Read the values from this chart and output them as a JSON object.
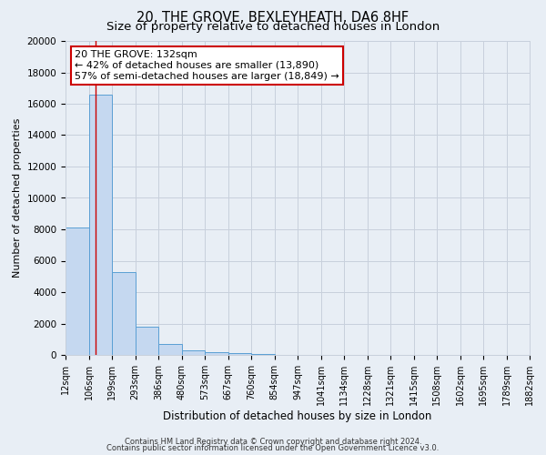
{
  "title": "20, THE GROVE, BEXLEYHEATH, DA6 8HF",
  "subtitle": "Size of property relative to detached houses in London",
  "xlabel": "Distribution of detached houses by size in London",
  "ylabel": "Number of detached properties",
  "bar_labels": [
    "12sqm",
    "106sqm",
    "199sqm",
    "293sqm",
    "386sqm",
    "480sqm",
    "573sqm",
    "667sqm",
    "760sqm",
    "854sqm",
    "947sqm",
    "1041sqm",
    "1134sqm",
    "1228sqm",
    "1321sqm",
    "1415sqm",
    "1508sqm",
    "1602sqm",
    "1695sqm",
    "1789sqm",
    "1882sqm"
  ],
  "bin_edges": [
    12,
    106,
    199,
    293,
    386,
    480,
    573,
    667,
    760,
    854,
    947,
    1041,
    1134,
    1228,
    1321,
    1415,
    1508,
    1602,
    1695,
    1789,
    1882
  ],
  "bar_color": "#c5d8f0",
  "bar_edge_color": "#5a9fd4",
  "bar_heights": [
    8100,
    16600,
    5300,
    1800,
    700,
    300,
    150,
    100,
    50,
    0,
    0,
    0,
    0,
    0,
    0,
    0,
    0,
    0,
    0,
    0
  ],
  "vline_x": 132,
  "vline_color": "#cc0000",
  "ylim": [
    0,
    20000
  ],
  "yticks": [
    0,
    2000,
    4000,
    6000,
    8000,
    10000,
    12000,
    14000,
    16000,
    18000,
    20000
  ],
  "annotation_title": "20 THE GROVE: 132sqm",
  "annotation_line1": "← 42% of detached houses are smaller (13,890)",
  "annotation_line2": "57% of semi-detached houses are larger (18,849) →",
  "annotation_box_color": "#ffffff",
  "annotation_box_edge": "#cc0000",
  "footer1": "Contains HM Land Registry data © Crown copyright and database right 2024.",
  "footer2": "Contains public sector information licensed under the Open Government Licence v3.0.",
  "bg_color": "#e8eef5",
  "plot_bg_color": "#e8eef5",
  "grid_color": "#c8d0dc",
  "title_fontsize": 10.5,
  "subtitle_fontsize": 9.5
}
